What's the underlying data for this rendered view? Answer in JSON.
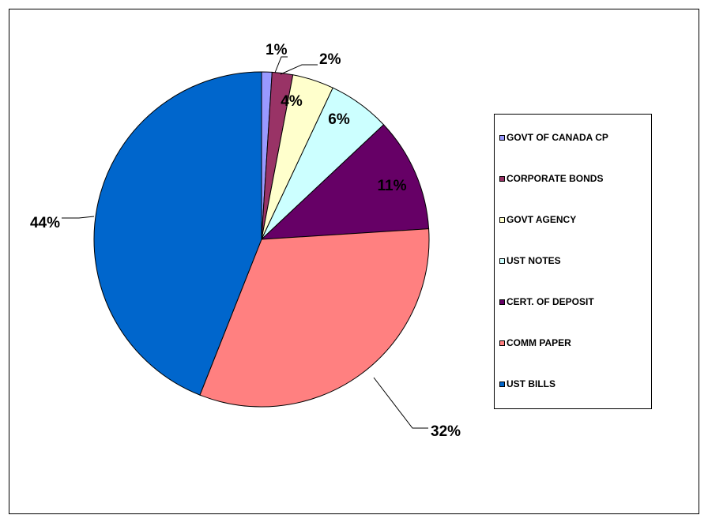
{
  "chart_data": {
    "type": "pie",
    "title": "",
    "legend_position": "right",
    "slices": [
      {
        "label": "GOVT OF CANADA CP",
        "value": 1,
        "pct_label": "1%",
        "color": "#9999ff"
      },
      {
        "label": "CORPORATE BONDS",
        "value": 2,
        "pct_label": "2%",
        "color": "#993366"
      },
      {
        "label": "GOVT AGENCY",
        "value": 4,
        "pct_label": "4%",
        "color": "#ffffcc"
      },
      {
        "label": "UST NOTES",
        "value": 6,
        "pct_label": "6%",
        "color": "#ccffff"
      },
      {
        "label": "CERT. OF DEPOSIT",
        "value": 11,
        "pct_label": "11%",
        "color": "#660066"
      },
      {
        "label": "COMM PAPER",
        "value": 32,
        "pct_label": "32%",
        "color": "#ff8080"
      },
      {
        "label": "UST BILLS",
        "value": 44,
        "pct_label": "44%",
        "color": "#0066cc"
      }
    ]
  }
}
